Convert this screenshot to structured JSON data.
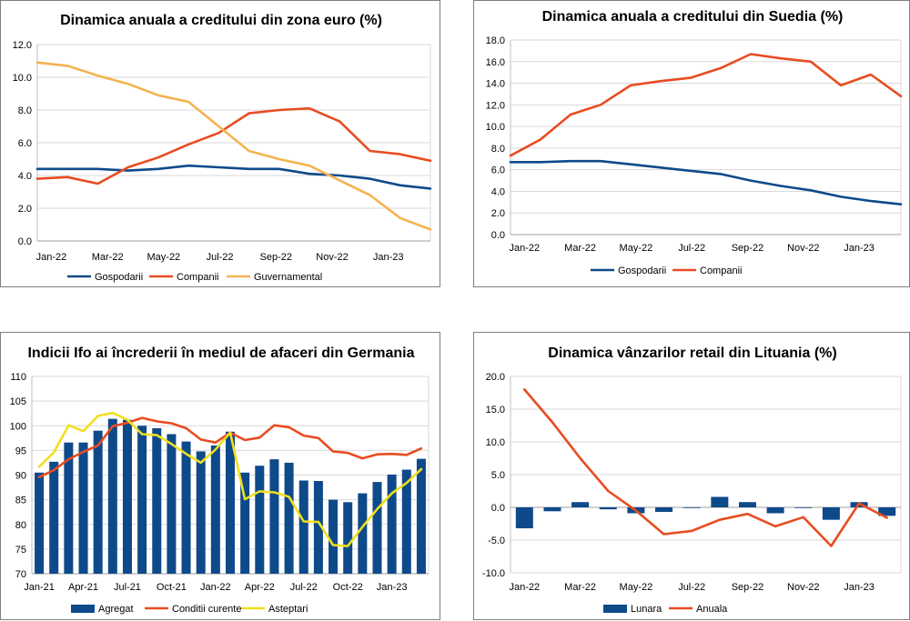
{
  "chart_data": [
    {
      "type": "line",
      "title": "Dinamica anuala a creditului din zona euro (%)",
      "x": [
        "Jan-22",
        "Feb-22",
        "Mar-22",
        "Apr-22",
        "May-22",
        "Jun-22",
        "Jul-22",
        "Aug-22",
        "Sep-22",
        "Oct-22",
        "Nov-22",
        "Dec-22",
        "Jan-23",
        "Feb-23"
      ],
      "x_tick_labels": [
        "Jan-22",
        "Mar-22",
        "May-22",
        "Jul-22",
        "Sep-22",
        "Nov-22",
        "Jan-23"
      ],
      "ylim": [
        0,
        12
      ],
      "y_ticks": [
        "0.0",
        "2.0",
        "4.0",
        "6.0",
        "8.0",
        "10.0",
        "12.0"
      ],
      "series": [
        {
          "name": "Gospodarii",
          "color": "#0e4a8a",
          "values": [
            4.4,
            4.4,
            4.4,
            4.3,
            4.4,
            4.6,
            4.5,
            4.4,
            4.4,
            4.1,
            4.0,
            3.8,
            3.4,
            3.2
          ]
        },
        {
          "name": "Companii",
          "color": "#e84c22",
          "values": [
            3.8,
            3.9,
            3.5,
            4.5,
            5.1,
            5.9,
            6.6,
            7.8,
            8.0,
            8.1,
            7.3,
            5.5,
            5.3,
            4.9
          ]
        },
        {
          "name": "Guvernamental",
          "color": "#f4b350",
          "values": [
            10.9,
            10.7,
            10.1,
            9.6,
            8.9,
            8.5,
            7.0,
            5.5,
            5.0,
            4.6,
            3.7,
            2.8,
            1.4,
            0.7
          ]
        }
      ]
    },
    {
      "type": "line",
      "title": "Dinamica anuala a creditului din Suedia (%)",
      "x": [
        "Jan-22",
        "Feb-22",
        "Mar-22",
        "Apr-22",
        "May-22",
        "Jun-22",
        "Jul-22",
        "Aug-22",
        "Sep-22",
        "Oct-22",
        "Nov-22",
        "Dec-22",
        "Jan-23",
        "Feb-23"
      ],
      "x_tick_labels": [
        "Jan-22",
        "Mar-22",
        "May-22",
        "Jul-22",
        "Sep-22",
        "Nov-22",
        "Jan-23"
      ],
      "ylim": [
        0,
        18
      ],
      "y_ticks": [
        "0.0",
        "2.0",
        "4.0",
        "6.0",
        "8.0",
        "10.0",
        "12.0",
        "14.0",
        "16.0",
        "18.0"
      ],
      "series": [
        {
          "name": "Gospodarii",
          "color": "#0e4a8a",
          "values": [
            6.7,
            6.7,
            6.8,
            6.8,
            6.5,
            6.2,
            5.9,
            5.6,
            5.0,
            4.5,
            4.1,
            3.5,
            3.1,
            2.8
          ]
        },
        {
          "name": "Companii",
          "color": "#e84c22",
          "values": [
            7.3,
            8.8,
            11.1,
            12.0,
            13.8,
            14.2,
            14.5,
            15.4,
            16.7,
            16.3,
            16.0,
            13.8,
            14.8,
            12.8
          ]
        }
      ]
    },
    {
      "type": "bar+line",
      "title": "Indicii Ifo ai încrederii în mediul de afaceri din Germania",
      "x": [
        "Jan-21",
        "Feb-21",
        "Mar-21",
        "Apr-21",
        "May-21",
        "Jun-21",
        "Jul-21",
        "Aug-21",
        "Sep-21",
        "Oct-21",
        "Nov-21",
        "Dec-21",
        "Jan-22",
        "Feb-22",
        "Mar-22",
        "Apr-22",
        "May-22",
        "Jun-22",
        "Jul-22",
        "Aug-22",
        "Sep-22",
        "Oct-22",
        "Nov-22",
        "Dec-22",
        "Jan-23",
        "Feb-23",
        "Mar-23"
      ],
      "x_tick_labels": [
        "Jan-21",
        "Apr-21",
        "Jul-21",
        "Oct-21",
        "Jan-22",
        "Apr-22",
        "Jul-22",
        "Oct-22",
        "Jan-23"
      ],
      "ylim": [
        70,
        110
      ],
      "y_ticks": [
        "70",
        "75",
        "80",
        "85",
        "90",
        "95",
        "100",
        "105",
        "110"
      ],
      "series": [
        {
          "name": "Agregat",
          "kind": "bar",
          "color": "#0e4a8a",
          "values": [
            90.5,
            92.7,
            96.6,
            96.6,
            99.0,
            101.4,
            101.2,
            100.0,
            99.5,
            98.3,
            96.8,
            94.8,
            96.0,
            98.8,
            90.5,
            91.9,
            93.2,
            92.5,
            88.9,
            88.8,
            85.0,
            84.5,
            86.3,
            88.6,
            90.1,
            91.1,
            93.3
          ]
        },
        {
          "name": "Conditii curente",
          "kind": "line",
          "color": "#e84c22",
          "values": [
            89.6,
            91.0,
            93.2,
            94.7,
            96.0,
            99.9,
            100.6,
            101.6,
            100.9,
            100.5,
            99.5,
            97.2,
            96.6,
            98.6,
            97.1,
            97.6,
            100.1,
            99.7,
            98.0,
            97.5,
            94.8,
            94.5,
            93.4,
            94.2,
            94.3,
            94.1,
            95.4
          ]
        },
        {
          "name": "Asteptari",
          "kind": "line",
          "color": "#f0df1e",
          "values": [
            91.7,
            94.6,
            100.1,
            98.9,
            102.0,
            102.6,
            101.2,
            98.3,
            98.1,
            96.3,
            94.3,
            92.5,
            95.2,
            98.6,
            85.1,
            86.7,
            86.5,
            85.6,
            80.6,
            80.5,
            75.8,
            75.6,
            79.5,
            83.1,
            86.3,
            88.4,
            91.2
          ]
        }
      ]
    },
    {
      "type": "bar+line",
      "title": "Dinamica vânzarilor retail din Lituania (%)",
      "x": [
        "Jan-22",
        "Feb-22",
        "Mar-22",
        "Apr-22",
        "May-22",
        "Jun-22",
        "Jul-22",
        "Aug-22",
        "Sep-22",
        "Oct-22",
        "Nov-22",
        "Dec-22",
        "Jan-23",
        "Feb-23"
      ],
      "x_tick_labels": [
        "Jan-22",
        "Mar-22",
        "May-22",
        "Jul-22",
        "Sep-22",
        "Nov-22",
        "Jan-23"
      ],
      "ylim": [
        -10,
        20
      ],
      "y_ticks": [
        "-10.0",
        "-5.0",
        "0.0",
        "5.0",
        "10.0",
        "15.0",
        "20.0"
      ],
      "series": [
        {
          "name": "Lunara",
          "kind": "bar",
          "color": "#0e4a8a",
          "values": [
            -3.2,
            -0.6,
            0.8,
            -0.3,
            -0.9,
            -0.7,
            -0.1,
            1.6,
            0.8,
            -0.9,
            -0.1,
            -1.9,
            0.8,
            -1.3
          ]
        },
        {
          "name": "Anuala",
          "kind": "line",
          "color": "#e84c22",
          "values": [
            18.0,
            13.0,
            7.5,
            2.5,
            -0.5,
            -4.1,
            -3.6,
            -1.9,
            -1.0,
            -2.9,
            -1.5,
            -5.9,
            0.6,
            -1.6
          ]
        }
      ]
    }
  ]
}
